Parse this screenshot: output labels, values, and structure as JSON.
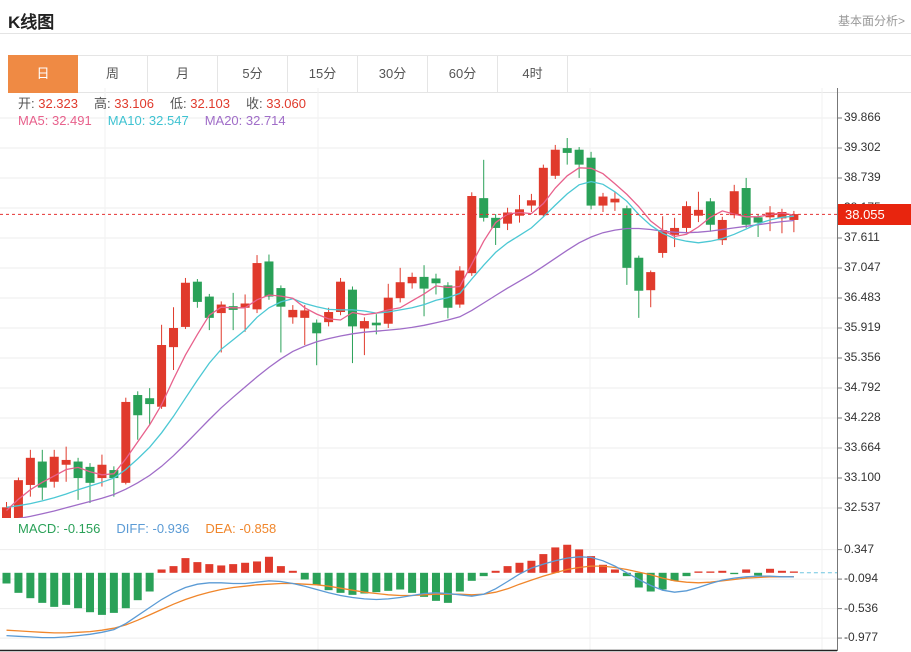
{
  "header": {
    "title": "K线图",
    "link": "基本面分析>"
  },
  "tabs": {
    "items": [
      "日",
      "周",
      "月",
      "5分",
      "15分",
      "30分",
      "60分",
      "4时"
    ],
    "active_index": 0
  },
  "ohlc_legend": {
    "items": [
      {
        "label": "开",
        "value": "32.323"
      },
      {
        "label": "高",
        "value": "33.106"
      },
      {
        "label": "低",
        "value": "32.103"
      },
      {
        "label": "收",
        "value": "33.060"
      }
    ]
  },
  "ma_legend": {
    "items": [
      {
        "label": "MA5",
        "value": "32.491",
        "color": "#e8618c"
      },
      {
        "label": "MA10",
        "value": "32.547",
        "color": "#3fc3d2"
      },
      {
        "label": "MA20",
        "value": "32.714",
        "color": "#a06dc8"
      }
    ]
  },
  "macd_legend": {
    "items": [
      {
        "label": "MACD",
        "value": "-0.156",
        "color": "#2aa158"
      },
      {
        "label": "DIFF",
        "value": "-0.936",
        "color": "#5b9bd5"
      },
      {
        "label": "DEA",
        "value": "-0.858",
        "color": "#f0862b"
      }
    ]
  },
  "last_price": {
    "value": "38.055",
    "numeric": 38.055
  },
  "colors": {
    "up": "#e03a2c",
    "down": "#2aa158",
    "ma5": "#e8618c",
    "ma10": "#4cc8d4",
    "ma20": "#a06dc8",
    "diff": "#5b9bd5",
    "dea": "#f0862b",
    "tab_active_bg": "#ef8a44",
    "price_line": "#e53333",
    "tag_bg": "#e8250e",
    "tag_text": "#ffffff",
    "grid": "#ededed",
    "axis_line": "#777777",
    "bottom_line": "#222222",
    "macd_zero_dash": "#6ec6e0"
  },
  "chart_data": {
    "type": "candlestick+macd",
    "main": {
      "y_ticks": [
        "39.866",
        "39.302",
        "38.739",
        "38.175",
        "37.611",
        "37.047",
        "36.483",
        "35.919",
        "35.356",
        "34.792",
        "34.228",
        "33.664",
        "33.100",
        "32.537"
      ],
      "y_range": [
        32.537,
        39.866
      ],
      "grid": true,
      "candles_ohlc": [
        [
          32.2,
          32.65,
          31.95,
          32.55
        ],
        [
          32.32,
          33.11,
          32.1,
          33.06
        ],
        [
          32.97,
          33.63,
          32.75,
          33.48
        ],
        [
          33.41,
          33.63,
          32.69,
          32.92
        ],
        [
          33.03,
          33.63,
          32.92,
          33.5
        ],
        [
          33.35,
          33.69,
          33.03,
          33.44
        ],
        [
          33.41,
          33.48,
          32.69,
          33.1
        ],
        [
          33.31,
          33.38,
          32.63,
          33.01
        ],
        [
          33.1,
          33.54,
          32.94,
          33.35
        ],
        [
          33.25,
          33.32,
          32.75,
          33.1
        ],
        [
          33.01,
          34.61,
          32.98,
          34.53
        ],
        [
          34.66,
          34.73,
          33.82,
          34.28
        ],
        [
          34.6,
          34.79,
          34.1,
          34.49
        ],
        [
          34.44,
          35.98,
          34.4,
          35.6
        ],
        [
          35.56,
          36.31,
          35.13,
          35.92
        ],
        [
          35.94,
          36.86,
          35.9,
          36.77
        ],
        [
          36.79,
          36.84,
          36.3,
          36.41
        ],
        [
          36.51,
          36.56,
          35.88,
          36.11
        ],
        [
          36.2,
          36.42,
          35.46,
          36.36
        ],
        [
          36.33,
          36.58,
          35.88,
          36.26
        ],
        [
          36.3,
          36.55,
          35.85,
          36.38
        ],
        [
          36.27,
          37.29,
          36.2,
          37.14
        ],
        [
          37.17,
          37.3,
          36.45,
          36.51
        ],
        [
          36.67,
          36.72,
          35.46,
          36.32
        ],
        [
          36.12,
          36.35,
          36.0,
          36.26
        ],
        [
          36.11,
          36.35,
          35.6,
          36.25
        ],
        [
          36.02,
          36.08,
          35.22,
          35.82
        ],
        [
          36.03,
          36.3,
          35.95,
          36.22
        ],
        [
          36.22,
          36.86,
          36.16,
          36.79
        ],
        [
          36.64,
          36.7,
          35.26,
          35.95
        ],
        [
          35.91,
          36.12,
          35.41,
          36.05
        ],
        [
          36.02,
          36.18,
          35.8,
          35.97
        ],
        [
          36.0,
          36.75,
          35.92,
          36.49
        ],
        [
          36.48,
          37.05,
          36.4,
          36.78
        ],
        [
          36.76,
          36.96,
          36.66,
          36.88
        ],
        [
          36.88,
          37.1,
          36.14,
          36.66
        ],
        [
          36.85,
          36.94,
          36.55,
          36.76
        ],
        [
          36.72,
          36.78,
          36.1,
          36.3
        ],
        [
          36.36,
          37.08,
          36.3,
          37.0
        ],
        [
          36.95,
          38.47,
          36.9,
          38.4
        ],
        [
          38.36,
          39.08,
          37.92,
          37.99
        ],
        [
          37.99,
          38.06,
          37.48,
          37.8
        ],
        [
          37.88,
          38.18,
          37.76,
          38.09
        ],
        [
          38.03,
          38.42,
          37.9,
          38.15
        ],
        [
          38.22,
          38.44,
          38.1,
          38.32
        ],
        [
          38.04,
          38.99,
          38.0,
          38.93
        ],
        [
          38.78,
          39.36,
          38.72,
          39.27
        ],
        [
          39.3,
          39.49,
          38.99,
          39.21
        ],
        [
          39.27,
          39.32,
          38.74,
          38.99
        ],
        [
          39.12,
          39.23,
          38.15,
          38.22
        ],
        [
          38.22,
          38.46,
          38.1,
          38.39
        ],
        [
          38.28,
          38.48,
          38.12,
          38.35
        ],
        [
          38.17,
          38.22,
          36.73,
          37.05
        ],
        [
          37.24,
          37.28,
          36.11,
          36.62
        ],
        [
          36.63,
          37.0,
          36.31,
          36.97
        ],
        [
          37.33,
          38.02,
          37.24,
          37.76
        ],
        [
          37.67,
          37.99,
          37.44,
          37.8
        ],
        [
          37.8,
          38.3,
          37.7,
          38.21
        ],
        [
          38.03,
          38.48,
          37.91,
          38.14
        ],
        [
          38.3,
          38.36,
          37.73,
          37.86
        ],
        [
          37.57,
          38.01,
          37.48,
          37.95
        ],
        [
          38.04,
          38.61,
          37.98,
          38.49
        ],
        [
          38.55,
          38.74,
          37.8,
          37.86
        ],
        [
          38.0,
          38.06,
          37.63,
          37.9
        ],
        [
          38.0,
          38.21,
          37.74,
          38.09
        ],
        [
          37.98,
          38.16,
          37.7,
          38.1
        ],
        [
          37.95,
          38.12,
          37.72,
          38.06
        ]
      ],
      "ma5": [
        32.49,
        32.7,
        32.88,
        33.02,
        33.14,
        33.26,
        33.3,
        33.22,
        33.16,
        33.18,
        33.46,
        33.78,
        34.1,
        34.48,
        34.96,
        35.41,
        35.8,
        36.16,
        36.31,
        36.3,
        36.3,
        36.45,
        36.54,
        36.52,
        36.48,
        36.3,
        36.18,
        36.09,
        36.07,
        36.21,
        36.17,
        36.2,
        36.26,
        36.3,
        36.43,
        36.56,
        36.71,
        36.68,
        36.7,
        37.12,
        37.55,
        37.9,
        38.06,
        38.09,
        38.07,
        38.26,
        38.55,
        38.78,
        38.93,
        38.92,
        38.82,
        38.63,
        38.43,
        38.2,
        37.93,
        37.76,
        37.64,
        37.68,
        37.82,
        38.0,
        38.12,
        38.06,
        38.01,
        38.01,
        38.05,
        38.08,
        38.04
      ],
      "ma10": [
        32.55,
        32.58,
        32.62,
        32.67,
        32.73,
        32.8,
        32.88,
        32.95,
        33.02,
        33.1,
        33.26,
        33.46,
        33.68,
        33.95,
        34.26,
        34.6,
        34.94,
        35.26,
        35.52,
        35.7,
        35.88,
        36.12,
        36.3,
        36.41,
        36.47,
        36.38,
        36.32,
        36.27,
        36.26,
        36.26,
        36.24,
        36.2,
        36.22,
        36.26,
        36.3,
        36.36,
        36.44,
        36.49,
        36.57,
        36.84,
        37.1,
        37.34,
        37.52,
        37.66,
        37.8,
        38.01,
        38.23,
        38.44,
        38.61,
        38.67,
        38.62,
        38.48,
        38.3,
        38.05,
        37.85,
        37.7,
        37.6,
        37.55,
        37.52,
        37.55,
        37.6,
        37.68,
        37.78,
        37.88,
        37.95,
        38.0,
        38.02
      ],
      "ma20": [
        32.3,
        32.34,
        32.38,
        32.43,
        32.48,
        32.54,
        32.6,
        32.66,
        32.72,
        32.79,
        32.89,
        33.01,
        33.15,
        33.32,
        33.52,
        33.74,
        33.97,
        34.2,
        34.42,
        34.62,
        34.81,
        35.0,
        35.18,
        35.34,
        35.48,
        35.58,
        35.66,
        35.72,
        35.77,
        35.81,
        35.84,
        35.86,
        35.88,
        35.9,
        35.93,
        35.97,
        36.02,
        36.07,
        36.13,
        36.25,
        36.39,
        36.53,
        36.67,
        36.8,
        36.93,
        37.08,
        37.23,
        37.38,
        37.52,
        37.63,
        37.71,
        37.76,
        37.79,
        37.79,
        37.77,
        37.74,
        37.72,
        37.71,
        37.72,
        37.74,
        37.77,
        37.8,
        37.83,
        37.86,
        37.89,
        37.92,
        37.94
      ],
      "last_price_line": 38.055
    },
    "macd": {
      "y_ticks": [
        "0.347",
        "-0.094",
        "-0.536",
        "-0.977"
      ],
      "hist": [
        -0.16,
        -0.3,
        -0.38,
        -0.45,
        -0.51,
        -0.48,
        -0.53,
        -0.59,
        -0.63,
        -0.6,
        -0.53,
        -0.41,
        -0.28,
        0.05,
        0.1,
        0.22,
        0.16,
        0.13,
        0.11,
        0.13,
        0.15,
        0.17,
        0.24,
        0.1,
        0.03,
        -0.1,
        -0.18,
        -0.26,
        -0.3,
        -0.33,
        -0.31,
        -0.29,
        -0.27,
        -0.25,
        -0.3,
        -0.36,
        -0.42,
        -0.45,
        -0.28,
        -0.12,
        -0.05,
        0.03,
        0.1,
        0.15,
        0.18,
        0.28,
        0.38,
        0.42,
        0.35,
        0.25,
        0.12,
        0.05,
        -0.05,
        -0.22,
        -0.28,
        -0.25,
        -0.12,
        -0.05,
        0.02,
        0.02,
        0.03,
        -0.02,
        0.05,
        -0.04,
        0.06,
        0.03,
        0.02
      ],
      "diff": [
        -0.94,
        -0.95,
        -0.96,
        -0.97,
        -0.97,
        -0.96,
        -0.94,
        -0.92,
        -0.89,
        -0.85,
        -0.76,
        -0.64,
        -0.52,
        -0.4,
        -0.3,
        -0.22,
        -0.17,
        -0.15,
        -0.15,
        -0.16,
        -0.16,
        -0.14,
        -0.12,
        -0.13,
        -0.16,
        -0.2,
        -0.25,
        -0.3,
        -0.34,
        -0.37,
        -0.39,
        -0.4,
        -0.39,
        -0.37,
        -0.34,
        -0.31,
        -0.3,
        -0.31,
        -0.33,
        -0.35,
        -0.32,
        -0.24,
        -0.13,
        -0.02,
        0.07,
        0.13,
        0.18,
        0.22,
        0.24,
        0.23,
        0.18,
        0.1,
        0.0,
        -0.1,
        -0.19,
        -0.26,
        -0.29,
        -0.27,
        -0.22,
        -0.16,
        -0.11,
        -0.08,
        -0.06,
        -0.05,
        -0.05,
        -0.06,
        -0.06
      ],
      "dea": [
        -0.86,
        -0.87,
        -0.88,
        -0.89,
        -0.9,
        -0.9,
        -0.89,
        -0.88,
        -0.86,
        -0.83,
        -0.78,
        -0.71,
        -0.63,
        -0.55,
        -0.47,
        -0.4,
        -0.34,
        -0.29,
        -0.25,
        -0.22,
        -0.2,
        -0.18,
        -0.17,
        -0.16,
        -0.16,
        -0.17,
        -0.18,
        -0.2,
        -0.23,
        -0.26,
        -0.29,
        -0.31,
        -0.33,
        -0.34,
        -0.34,
        -0.33,
        -0.32,
        -0.32,
        -0.32,
        -0.33,
        -0.32,
        -0.29,
        -0.24,
        -0.17,
        -0.11,
        -0.05,
        0.0,
        0.05,
        0.08,
        0.1,
        0.1,
        0.08,
        0.05,
        0.01,
        -0.03,
        -0.08,
        -0.12,
        -0.14,
        -0.15,
        -0.14,
        -0.12,
        -0.1,
        -0.08,
        -0.07,
        -0.06,
        -0.06,
        -0.06
      ]
    }
  }
}
